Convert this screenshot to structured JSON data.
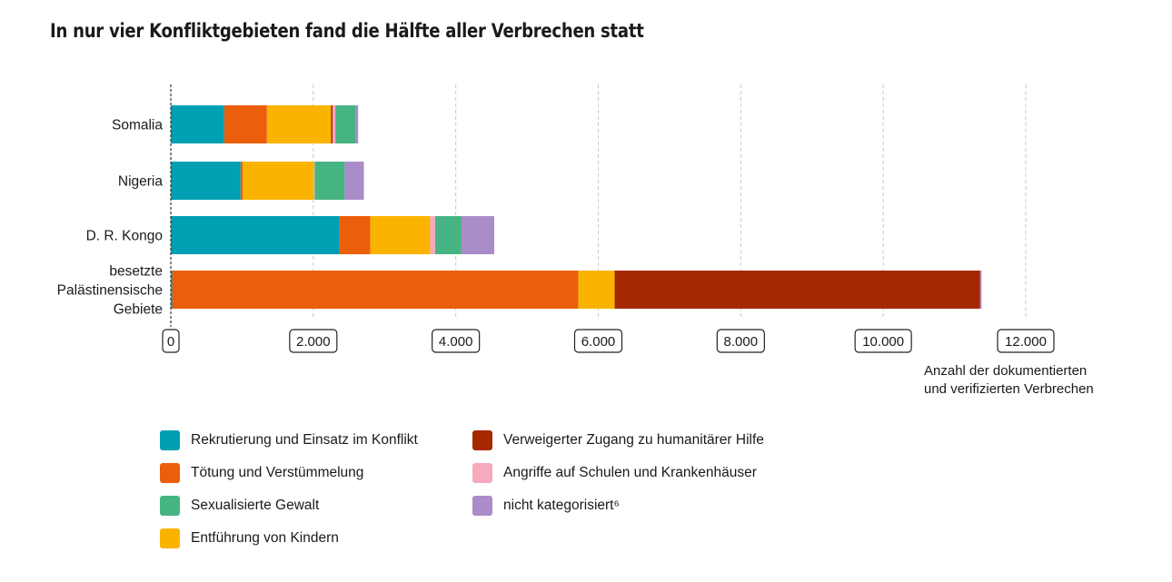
{
  "title": "In nur vier Konfliktgebieten fand die Hälfte aller Verbrechen statt",
  "chart_data": {
    "type": "bar",
    "orientation": "horizontal",
    "stacked": true,
    "categories": [
      "Somalia",
      "Nigeria",
      "D. R. Kongo",
      "besetzte Palästinensische Gebiete"
    ],
    "category_lines": [
      [
        "Somalia"
      ],
      [
        "Nigeria"
      ],
      [
        "D. R. Kongo"
      ],
      [
        "besetzte",
        "Palästinensische",
        "Gebiete"
      ]
    ],
    "series": [
      {
        "name": "Rekrutierung und Einsatz im Konflikt",
        "color": "#00a0b4",
        "values": [
          750,
          980,
          2370,
          20
        ]
      },
      {
        "name": "Tötung und Verstümmelung",
        "color": "#eb5f0c",
        "values": [
          600,
          30,
          430,
          5700
        ]
      },
      {
        "name": "Entführung von Kindern",
        "color": "#fab400",
        "values": [
          900,
          1000,
          840,
          510
        ]
      },
      {
        "name": "Verweigerter Zugang zu humanitärer Hilfe",
        "color": "#a52800",
        "values": [
          20,
          0,
          0,
          5130
        ]
      },
      {
        "name": "Angriffe auf Schulen und Krankenhäuser",
        "color": "#f5aabe",
        "values": [
          40,
          10,
          70,
          0
        ]
      },
      {
        "name": "Sexualisierte Gewalt",
        "color": "#46b482",
        "values": [
          290,
          420,
          370,
          0
        ]
      },
      {
        "name": "nicht kategorisiert⁶",
        "color": "#aa8cc8",
        "values": [
          30,
          270,
          460,
          20
        ]
      }
    ],
    "x_ticks": [
      "0",
      "2.000",
      "4.000",
      "6.000",
      "8.000",
      "10.000",
      "12.000"
    ],
    "x_tick_values": [
      0,
      2000,
      4000,
      6000,
      8000,
      10000,
      12000
    ],
    "xlim": [
      0,
      12000
    ],
    "xlabel_lines": [
      "Anzahl der dokumentierten",
      "und verifizierten Verbrechen"
    ],
    "grid": true,
    "legend": {
      "left": [
        "Rekrutierung und Einsatz im Konflikt",
        "Tötung und Verstümmelung",
        "Sexualisierte Gewalt",
        "Entführung von Kindern"
      ],
      "right": [
        "Verweigerter Zugang zu humanitärer Hilfe",
        "Angriffe auf Schulen und Krankenhäuser",
        "nicht kategorisiert⁶"
      ]
    }
  }
}
